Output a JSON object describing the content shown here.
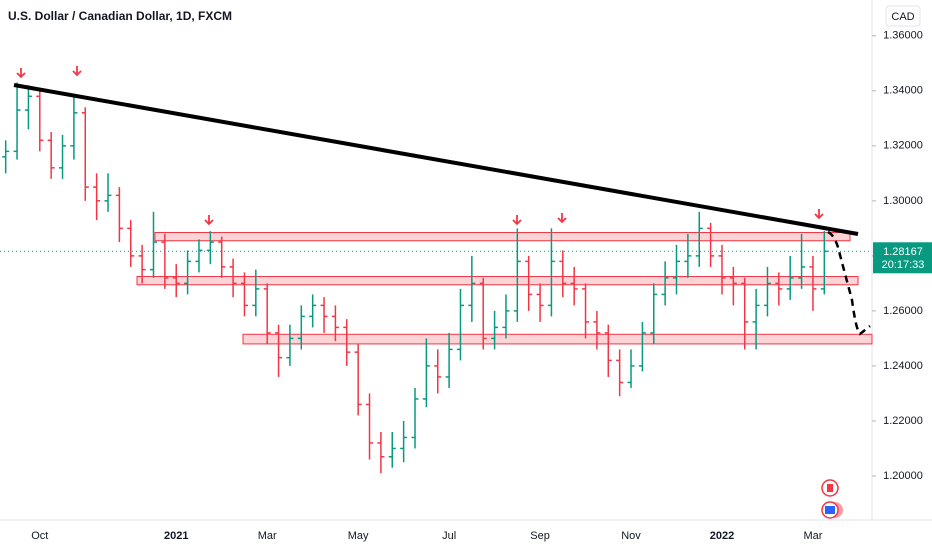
{
  "chart_data": {
    "type": "ohlc",
    "title": "U.S. Dollar / Canadian Dollar, 1D, FXCM",
    "currency": "CAD",
    "countdown": "20:17:33",
    "up_color": "#089981",
    "down_color": "#f23645",
    "grid": false,
    "ylim": [
      1.184,
      1.373
    ],
    "yticks": [
      {
        "value": 1.2,
        "label": "1.20000"
      },
      {
        "value": 1.22,
        "label": "1.22000"
      },
      {
        "value": 1.24,
        "label": "1.24000"
      },
      {
        "value": 1.26,
        "label": "1.26000"
      },
      {
        "value": 1.28,
        "label": "1.28000"
      },
      {
        "value": 1.3,
        "label": "1.30000"
      },
      {
        "value": 1.32,
        "label": "1.32000"
      },
      {
        "value": 1.34,
        "label": "1.34000"
      },
      {
        "value": 1.36,
        "label": "1.36000"
      }
    ],
    "categories": [
      null,
      null,
      null,
      "Oct",
      null,
      null,
      null,
      null,
      null,
      null,
      null,
      null,
      null,
      null,
      null,
      "2021",
      null,
      null,
      null,
      null,
      null,
      null,
      null,
      "Mar",
      null,
      null,
      null,
      null,
      null,
      null,
      null,
      "May",
      null,
      null,
      null,
      null,
      null,
      null,
      null,
      "Jul",
      null,
      null,
      null,
      null,
      null,
      null,
      null,
      "Sep",
      null,
      null,
      null,
      null,
      null,
      null,
      null,
      "Nov",
      null,
      null,
      null,
      null,
      null,
      null,
      null,
      "2022",
      null,
      null,
      null,
      null,
      null,
      null,
      null,
      "Mar",
      null
    ],
    "open": [
      1.316,
      1.318,
      1.333,
      1.338,
      1.322,
      1.312,
      1.32,
      1.332,
      1.305,
      1.3,
      1.302,
      1.29,
      1.28,
      1.275,
      1.285,
      1.272,
      1.27,
      1.278,
      1.282,
      1.285,
      1.276,
      1.27,
      1.262,
      1.268,
      1.252,
      1.243,
      1.25,
      1.258,
      1.262,
      1.258,
      1.254,
      1.245,
      1.226,
      1.212,
      1.207,
      1.21,
      1.214,
      1.228,
      1.24,
      1.236,
      1.246,
      1.262,
      1.27,
      1.25,
      1.254,
      1.26,
      1.278,
      1.266,
      1.262,
      1.278,
      1.27,
      1.268,
      1.256,
      1.252,
      1.242,
      1.234,
      1.24,
      1.252,
      1.266,
      1.272,
      1.278,
      1.28,
      1.29,
      1.28,
      1.272,
      1.27,
      1.256,
      1.262,
      1.27,
      1.268,
      1.272,
      1.276,
      1.268
    ],
    "high": [
      1.322,
      1.343,
      1.342,
      1.34,
      1.325,
      1.324,
      1.339,
      1.334,
      1.31,
      1.31,
      1.305,
      1.293,
      1.284,
      1.296,
      1.288,
      1.277,
      1.282,
      1.286,
      1.289,
      1.287,
      1.279,
      1.274,
      1.275,
      1.27,
      1.255,
      1.255,
      1.262,
      1.266,
      1.265,
      1.262,
      1.257,
      1.248,
      1.23,
      1.216,
      1.216,
      1.22,
      1.232,
      1.25,
      1.246,
      1.252,
      1.268,
      1.28,
      1.272,
      1.26,
      1.266,
      1.29,
      1.28,
      1.27,
      1.29,
      1.282,
      1.276,
      1.27,
      1.26,
      1.255,
      1.246,
      1.246,
      1.256,
      1.27,
      1.278,
      1.284,
      1.288,
      1.296,
      1.292,
      1.284,
      1.276,
      1.272,
      1.268,
      1.276,
      1.274,
      1.28,
      1.288,
      1.28,
      1.289
    ],
    "low": [
      1.31,
      1.315,
      1.326,
      1.318,
      1.308,
      1.308,
      1.315,
      1.3,
      1.293,
      1.296,
      1.285,
      1.276,
      1.27,
      1.272,
      1.268,
      1.265,
      1.266,
      1.274,
      1.277,
      1.272,
      1.265,
      1.258,
      1.258,
      1.248,
      1.236,
      1.24,
      1.246,
      1.254,
      1.252,
      1.249,
      1.24,
      1.222,
      1.206,
      1.201,
      1.203,
      1.205,
      1.21,
      1.225,
      1.23,
      1.232,
      1.242,
      1.256,
      1.246,
      1.246,
      1.25,
      1.256,
      1.26,
      1.256,
      1.258,
      1.265,
      1.262,
      1.25,
      1.246,
      1.236,
      1.229,
      1.232,
      1.238,
      1.248,
      1.262,
      1.266,
      1.272,
      1.276,
      1.276,
      1.266,
      1.262,
      1.246,
      1.246,
      1.258,
      1.262,
      1.264,
      1.268,
      1.26,
      1.266
    ],
    "close": [
      1.318,
      1.333,
      1.338,
      1.322,
      1.312,
      1.32,
      1.332,
      1.305,
      1.3,
      1.302,
      1.29,
      1.28,
      1.275,
      1.285,
      1.272,
      1.27,
      1.278,
      1.282,
      1.285,
      1.276,
      1.27,
      1.262,
      1.268,
      1.252,
      1.243,
      1.25,
      1.258,
      1.262,
      1.258,
      1.254,
      1.245,
      1.226,
      1.212,
      1.207,
      1.21,
      1.214,
      1.228,
      1.24,
      1.236,
      1.246,
      1.262,
      1.27,
      1.25,
      1.254,
      1.26,
      1.278,
      1.266,
      1.262,
      1.278,
      1.27,
      1.268,
      1.256,
      1.252,
      1.242,
      1.234,
      1.24,
      1.252,
      1.266,
      1.272,
      1.278,
      1.28,
      1.29,
      1.28,
      1.272,
      1.27,
      1.256,
      1.262,
      1.27,
      1.268,
      1.272,
      1.276,
      1.268,
      1.28167
    ],
    "zones": [
      {
        "low": 1.2855,
        "high": 1.2885
      },
      {
        "low": 1.2695,
        "high": 1.2725
      },
      {
        "low": 1.248,
        "high": 1.2515
      }
    ]
  }
}
